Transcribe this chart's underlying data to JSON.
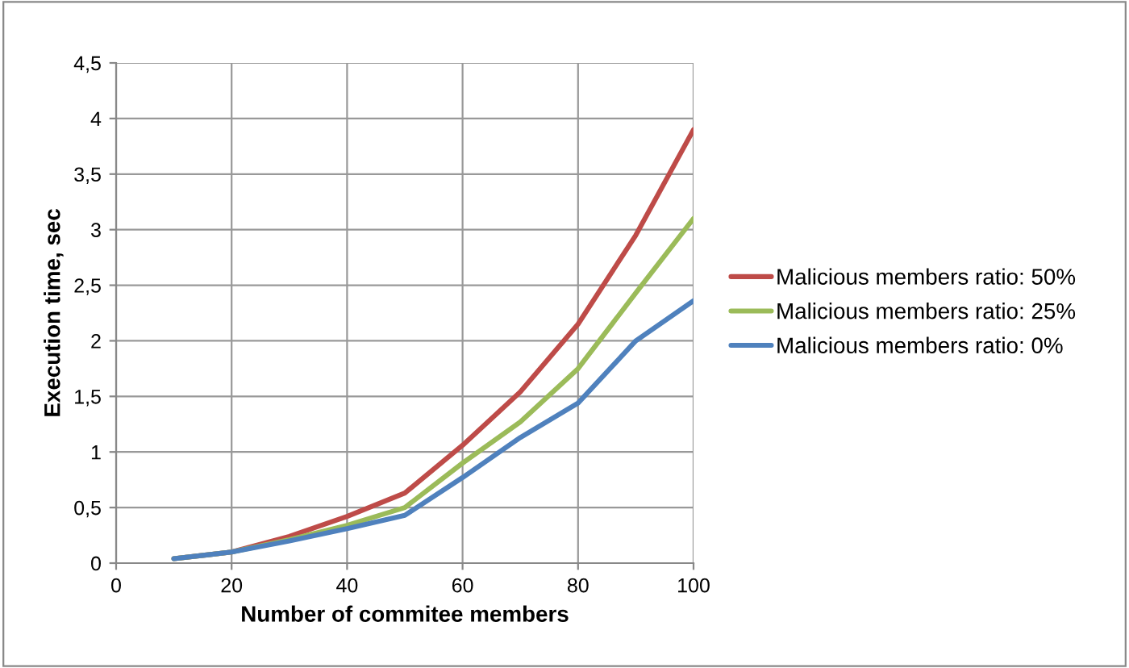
{
  "chart_data": {
    "type": "line",
    "xlabel": "Number of commitee members",
    "ylabel": "Execution time, sec",
    "x": [
      10,
      20,
      30,
      40,
      50,
      60,
      70,
      80,
      90,
      100
    ],
    "series": [
      {
        "name": "Malicious members ratio: 50%",
        "color": "#be4b48",
        "values": [
          0.04,
          0.1,
          0.24,
          0.42,
          0.63,
          1.06,
          1.54,
          2.15,
          2.95,
          3.9
        ]
      },
      {
        "name": "Malicious members ratio: 25%",
        "color": "#9bbb59",
        "values": [
          0.04,
          0.1,
          0.21,
          0.34,
          0.5,
          0.9,
          1.27,
          1.75,
          2.43,
          3.1
        ]
      },
      {
        "name": "Malicious members ratio: 0%",
        "color": "#4f81bd",
        "values": [
          0.04,
          0.1,
          0.2,
          0.31,
          0.43,
          0.77,
          1.13,
          1.44,
          2.0,
          2.36
        ]
      }
    ],
    "xlim": [
      0,
      100
    ],
    "xticks": [
      0,
      20,
      40,
      60,
      80,
      100
    ],
    "ylim": [
      0,
      4.5
    ],
    "yticks": [
      0,
      {
        "value": 0.5,
        "label": "0,5"
      },
      1,
      {
        "value": 1.5,
        "label": "1,5"
      },
      2,
      {
        "value": 2.5,
        "label": "2,5"
      },
      3,
      {
        "value": 3.5,
        "label": "3,5"
      },
      4,
      {
        "value": 4.5,
        "label": "4,5"
      }
    ],
    "grid": true,
    "legend": "right",
    "marker": "none",
    "line_style": "solid"
  }
}
